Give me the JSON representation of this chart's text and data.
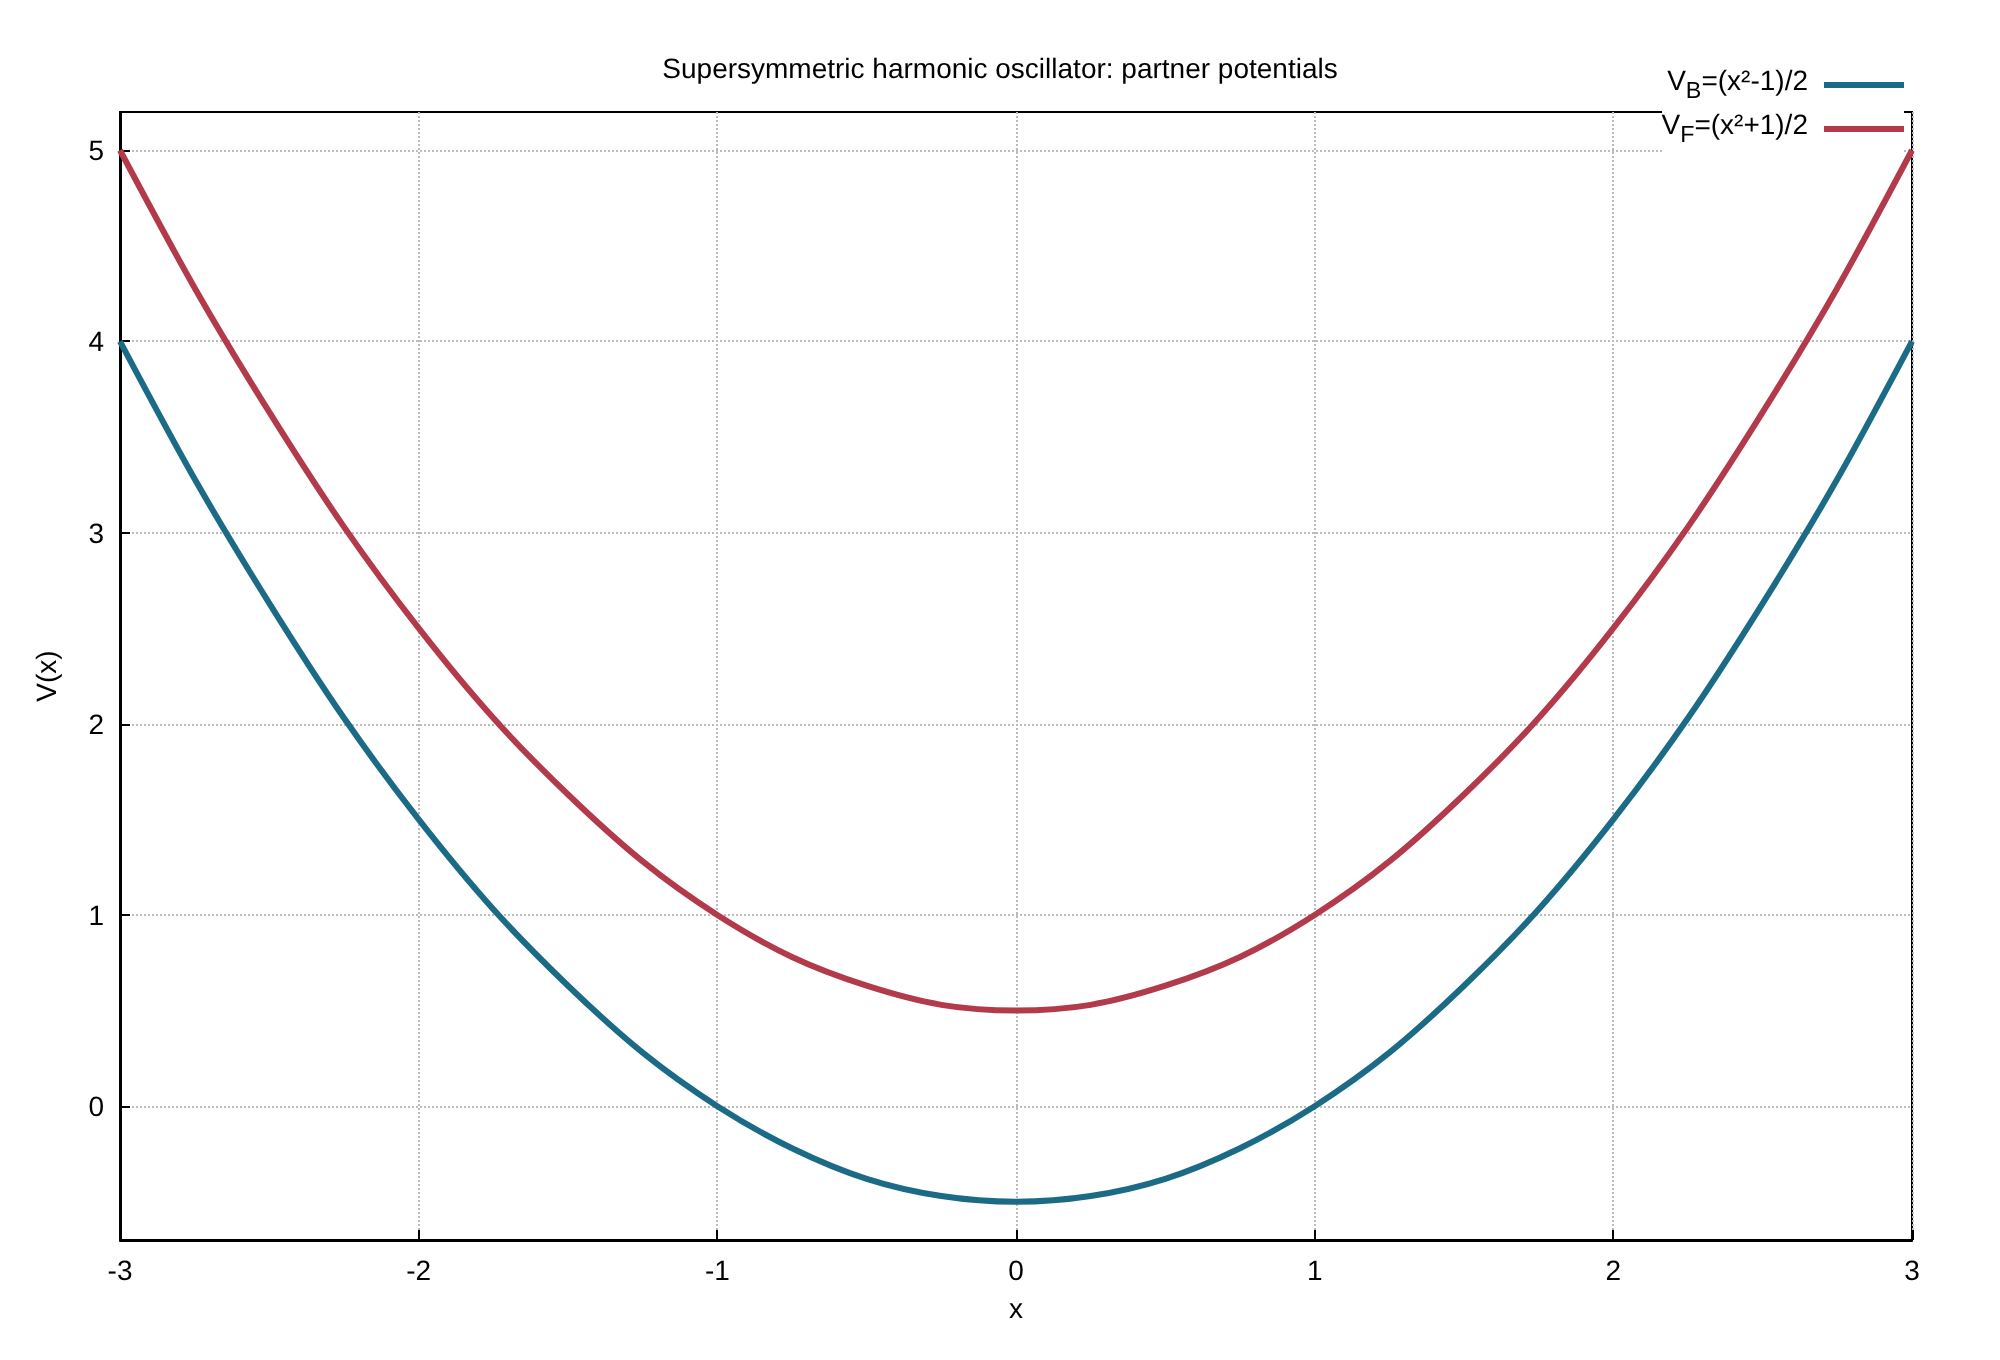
{
  "chart_data": {
    "type": "line",
    "title": "Supersymmetric harmonic oscillator: partner potentials",
    "xlabel": "x",
    "ylabel": "V(x)",
    "x": [
      -3,
      -2.75,
      -2.5,
      -2.25,
      -2,
      -1.75,
      -1.5,
      -1.25,
      -1,
      -0.75,
      -0.5,
      -0.25,
      0,
      0.25,
      0.5,
      0.75,
      1,
      1.25,
      1.5,
      1.75,
      2,
      2.25,
      2.5,
      2.75,
      3
    ],
    "series": [
      {
        "name": "V$_{B}$=(x²-1)/2",
        "color": "#1b6b86",
        "values": [
          4,
          3.28,
          2.63,
          2.03,
          1.5,
          1.03,
          0.63,
          0.28,
          0,
          -0.22,
          -0.38,
          -0.47,
          -0.5,
          -0.47,
          -0.38,
          -0.22,
          0,
          0.28,
          0.63,
          1.03,
          1.5,
          2.03,
          2.63,
          3.28,
          4
        ]
      },
      {
        "name": "V$_{F}$=(x²+1)/2",
        "color": "#b23a4a",
        "values": [
          5,
          4.28,
          3.63,
          3.03,
          2.5,
          2.03,
          1.63,
          1.28,
          1,
          0.78,
          0.63,
          0.53,
          0.5,
          0.53,
          0.63,
          0.78,
          1,
          1.28,
          1.63,
          2.03,
          2.5,
          3.03,
          3.63,
          4.28,
          5
        ]
      }
    ],
    "xlim": [
      -3,
      3
    ],
    "xticks": [
      -3,
      -2,
      -1,
      0,
      1,
      2,
      3
    ],
    "ylim": [
      -0.7,
      5.2
    ],
    "yticks": [
      0,
      1,
      2,
      3,
      4,
      5
    ],
    "grid": true,
    "legend": "top right",
    "marker": "none",
    "line_style": "solid"
  }
}
